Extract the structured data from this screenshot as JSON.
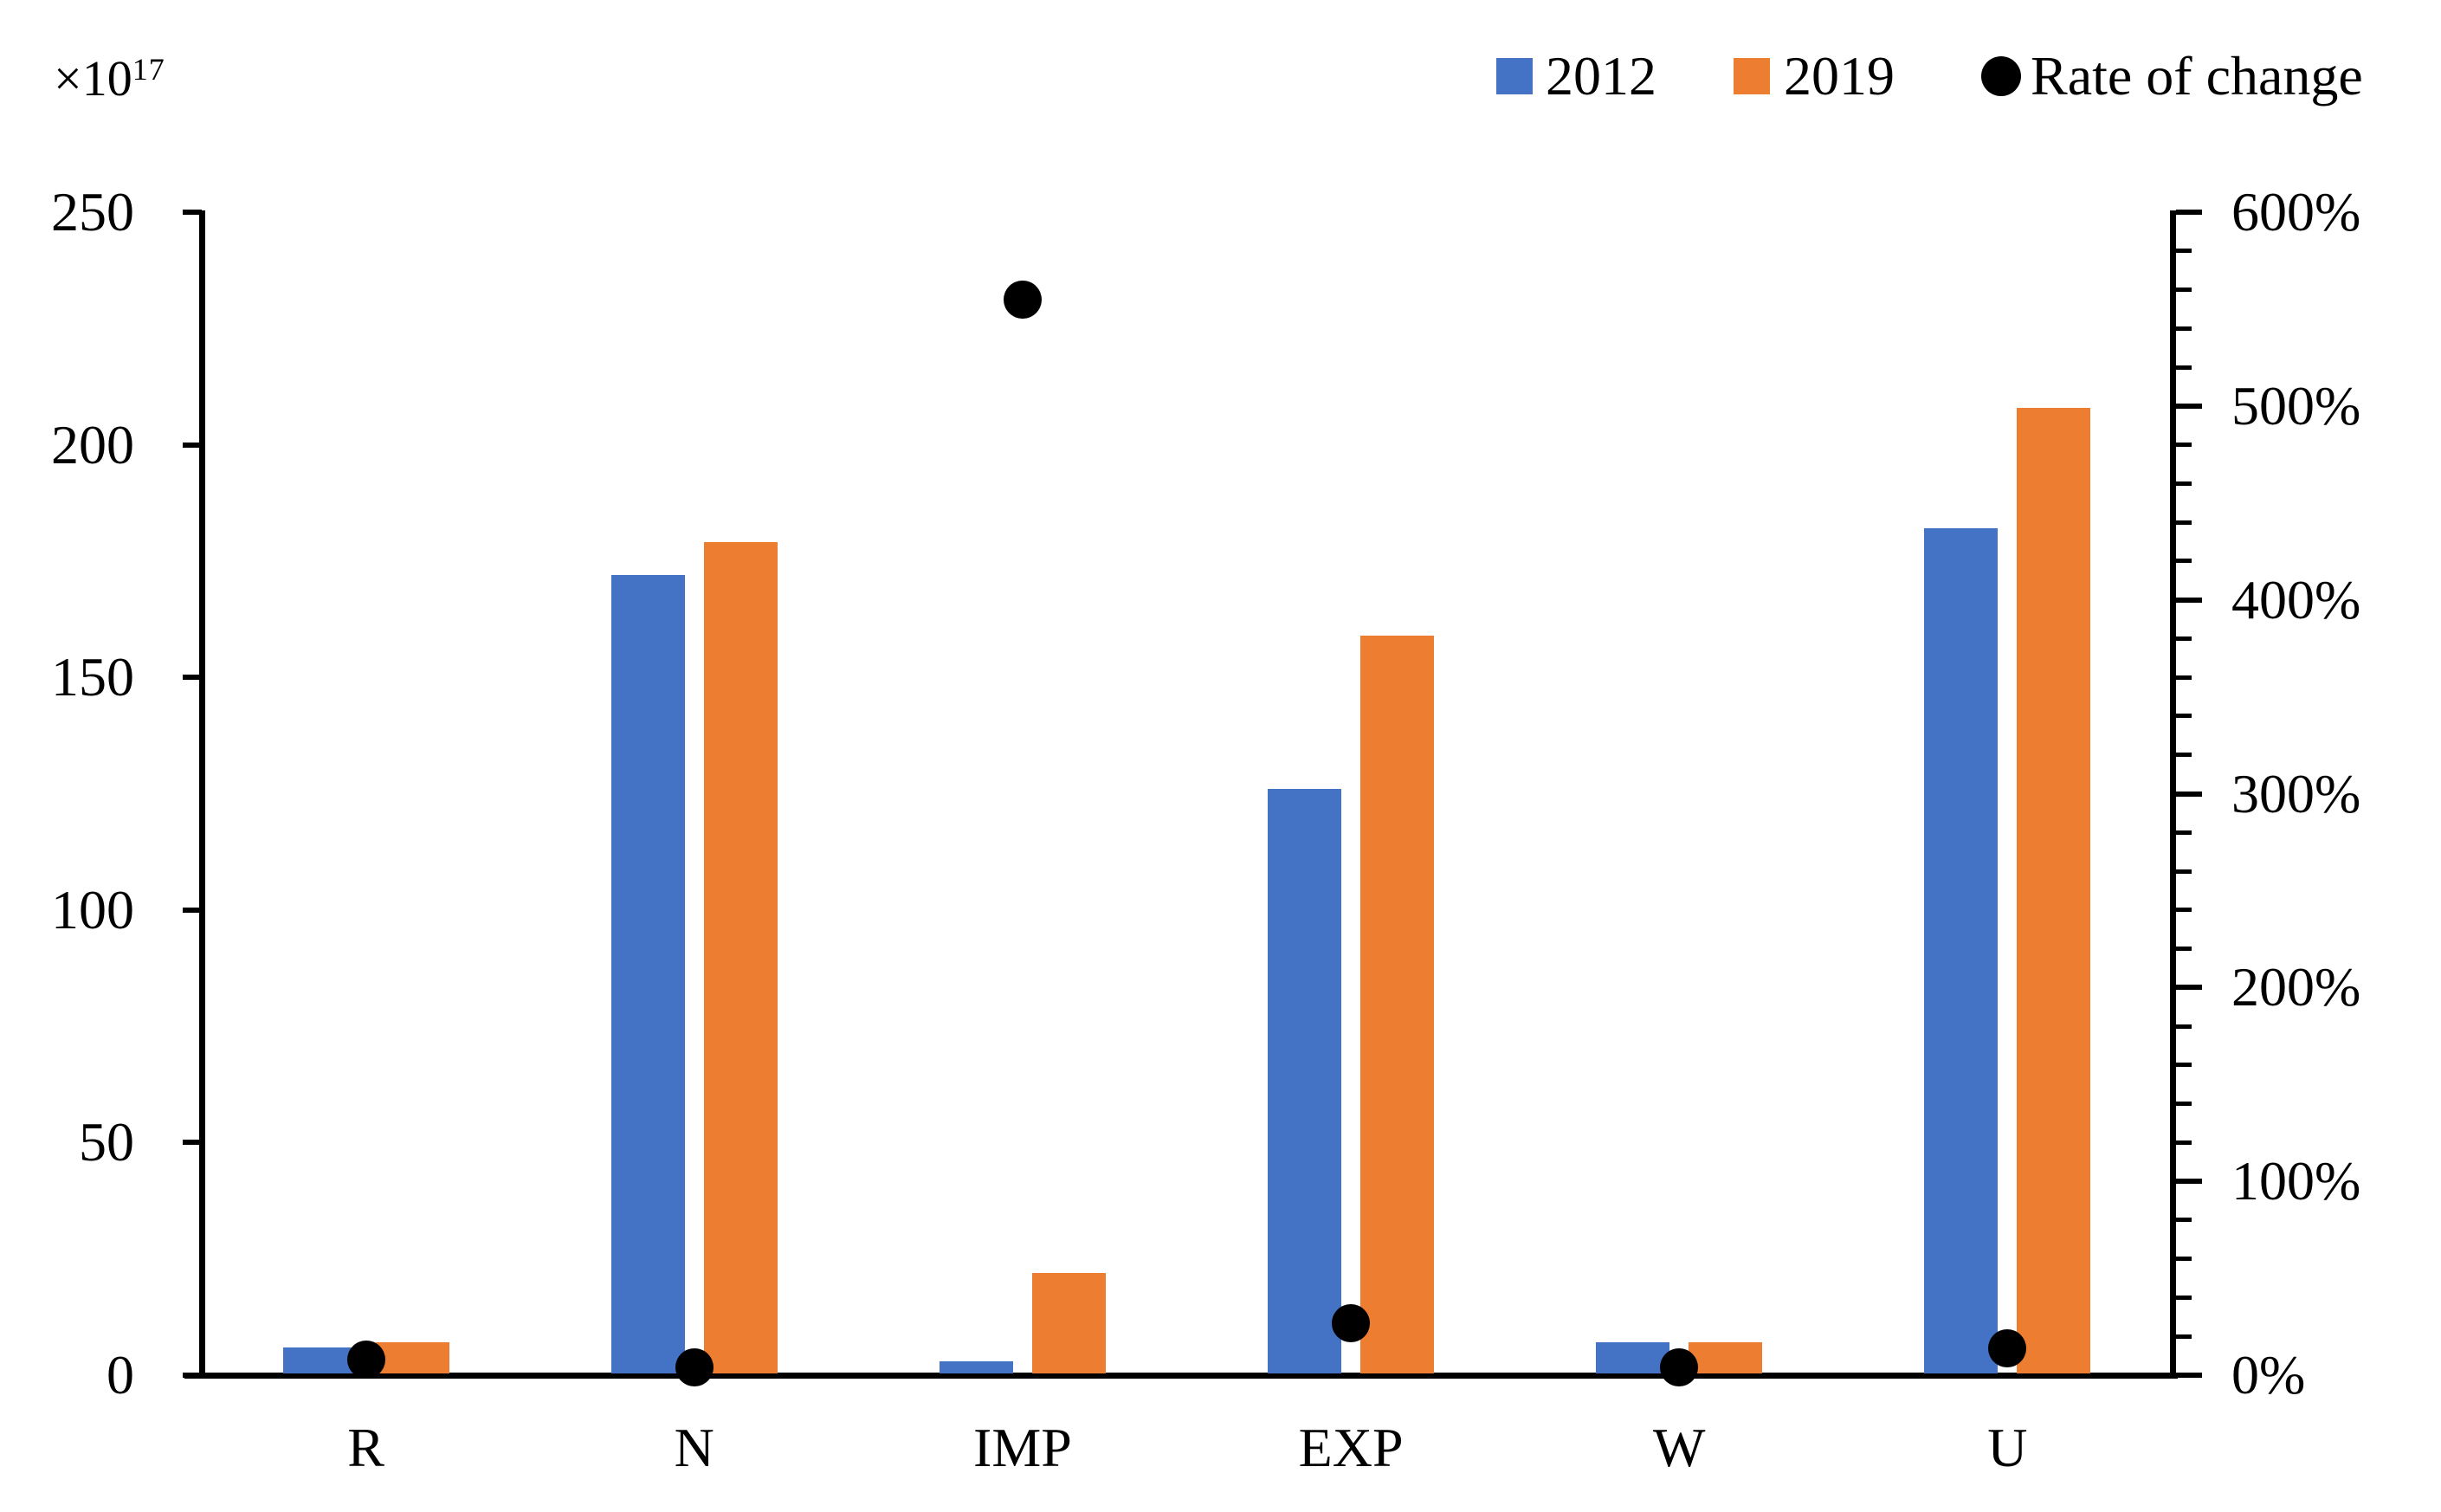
{
  "legend": {
    "position": "top-right",
    "items": [
      {
        "label": "2012",
        "color": "#4472C4",
        "shape": "square"
      },
      {
        "label": "2019",
        "color": "#ED7D31",
        "shape": "square"
      },
      {
        "label": "Rate of change",
        "color": "#000000",
        "shape": "circle"
      }
    ]
  },
  "chart_data": {
    "type": "bar",
    "title": "",
    "categories": [
      "R",
      "N",
      "IMP",
      "EXP",
      "W",
      "U"
    ],
    "series": [
      {
        "name": "2012",
        "type": "bar",
        "axis": "left",
        "color": "#4472C4",
        "values": [
          6,
          172,
          3,
          126,
          7,
          182
        ]
      },
      {
        "name": "2019",
        "type": "bar",
        "axis": "left",
        "color": "#ED7D31",
        "values": [
          7,
          179,
          22,
          159,
          7,
          208
        ]
      },
      {
        "name": "Rate of change",
        "type": "scatter",
        "axis": "right",
        "color": "#000000",
        "values_percent": [
          8,
          4,
          555,
          27,
          4,
          14
        ]
      }
    ],
    "left_axis": {
      "multiplier_base": "×10",
      "multiplier_exponent": "17",
      "range": [
        0,
        250
      ],
      "ticks": [
        {
          "value": 0,
          "label": "0"
        },
        {
          "value": 50,
          "label": "50"
        },
        {
          "value": 100,
          "label": "100"
        },
        {
          "value": 150,
          "label": "150"
        },
        {
          "value": 200,
          "label": "200"
        },
        {
          "value": 250,
          "label": "250"
        }
      ]
    },
    "right_axis": {
      "range": [
        0,
        600
      ],
      "unit": "%",
      "minor_tick_step": 20,
      "ticks": [
        {
          "value": 0,
          "label": "0%"
        },
        {
          "value": 100,
          "label": "100%"
        },
        {
          "value": 200,
          "label": "200%"
        },
        {
          "value": 300,
          "label": "300%"
        },
        {
          "value": 400,
          "label": "400%"
        },
        {
          "value": 500,
          "label": "500%"
        },
        {
          "value": 600,
          "label": "600%"
        }
      ]
    },
    "grid": false,
    "legend_position": "top-right"
  }
}
